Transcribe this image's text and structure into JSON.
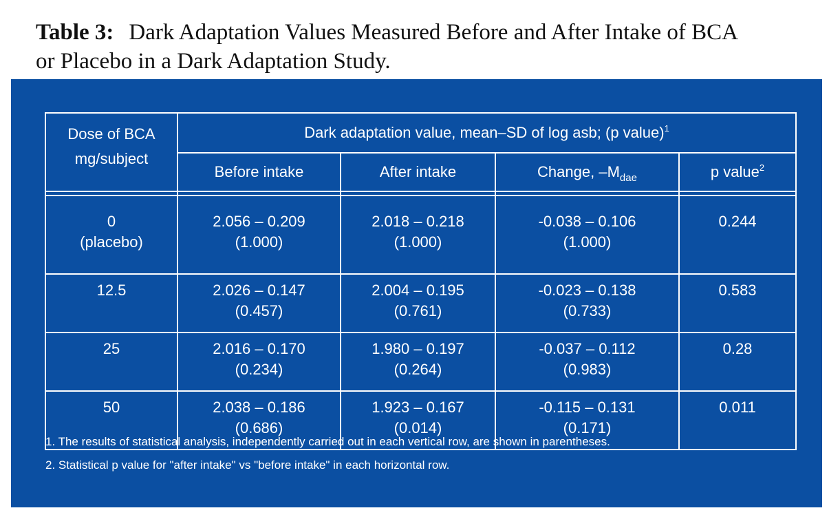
{
  "caption": {
    "label": "Table 3:",
    "text_line1": "Dark Adaptation Values Measured Before and After Intake of BCA",
    "text_line2": "or Placebo in a Dark Adaptation Study."
  },
  "table": {
    "dose_header_line1": "Dose of BCA",
    "dose_header_line2": "mg/subject",
    "group_header": "Dark adaptation value, mean–SD of log asb; (p value)",
    "group_header_sup": "1",
    "columns": {
      "before": "Before intake",
      "after": "After intake",
      "change": "Change, –M",
      "change_sub": "dae",
      "pvalue": "p value",
      "pvalue_sup": "2"
    },
    "rows": [
      {
        "dose": "0",
        "dose_note": "(placebo)",
        "before": "2.056 – 0.209",
        "before_p": "(1.000)",
        "after": "2.018 – 0.218",
        "after_p": "(1.000)",
        "change": "-0.038 – 0.106",
        "change_p": "(1.000)",
        "pvalue": "0.244"
      },
      {
        "dose": "12.5",
        "dose_note": "",
        "before": "2.026 – 0.147",
        "before_p": "(0.457)",
        "after": "2.004 – 0.195",
        "after_p": "(0.761)",
        "change": "-0.023 – 0.138",
        "change_p": "(0.733)",
        "pvalue": "0.583"
      },
      {
        "dose": "25",
        "dose_note": "",
        "before": "2.016 – 0.170",
        "before_p": "(0.234)",
        "after": "1.980 – 0.197",
        "after_p": "(0.264)",
        "change": "-0.037 – 0.112",
        "change_p": "(0.983)",
        "pvalue": "0.28"
      },
      {
        "dose": "50",
        "dose_note": "",
        "before": "2.038 – 0.186",
        "before_p": "(0.686)",
        "after": "1.923 – 0.167",
        "after_p": "(0.014)",
        "change": "-0.115 – 0.131",
        "change_p": "(0.171)",
        "pvalue": "0.011"
      }
    ]
  },
  "footnotes": [
    "1. The results of statistical analysis, independently carried out in each vertical row, are  shown in parentheses.",
    "2. Statistical p value for \"after intake\" vs \"before intake\" in each horizontal row."
  ],
  "colors": {
    "panel_background": "#0b4fa2",
    "table_text": "#ffffff",
    "caption_text": "#111111"
  }
}
